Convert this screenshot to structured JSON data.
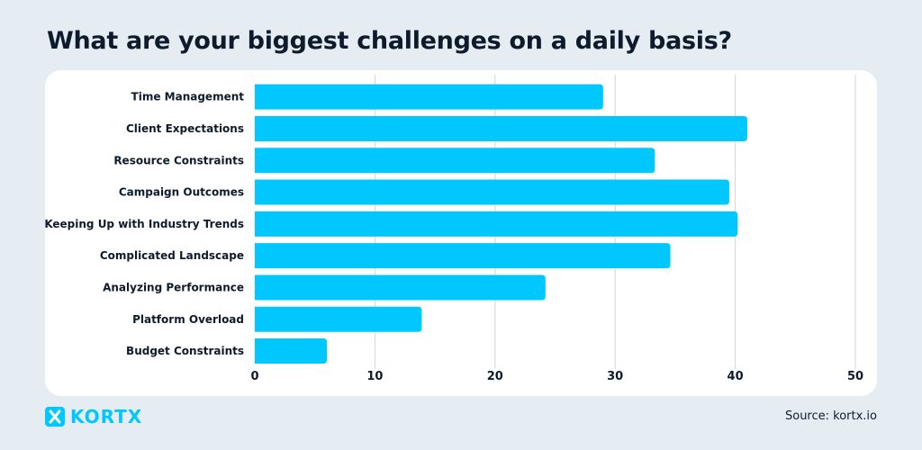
{
  "page": {
    "title": "What are your biggest challenges on a daily basis?",
    "source": "Source: kortx.io"
  },
  "brand": {
    "name": "KORTX",
    "color": "#00c8ff",
    "logo_icon": "kortx-x-logo-icon"
  },
  "colors": {
    "bar": "#00c8ff",
    "background": "#e5edf3",
    "card": "#ffffff",
    "grid": "#cfd6dc",
    "text": "#0e1b2c"
  },
  "chart_data": {
    "type": "bar",
    "orientation": "horizontal",
    "title": "What are your biggest challenges on a daily basis?",
    "categories": [
      "Time Management",
      "Client Expectations",
      "Resource Constraints",
      "Campaign Outcomes",
      "Keeping Up with Industry Trends",
      "Complicated Landscape",
      "Analyzing Performance",
      "Platform Overload",
      "Budget Constraints"
    ],
    "values": [
      29,
      41,
      33.3,
      39.5,
      40.2,
      34.6,
      24.2,
      13.9,
      6
    ],
    "xlim": [
      0,
      50
    ],
    "xticks": [
      0,
      10,
      20,
      30,
      40,
      50
    ],
    "xlabel": "",
    "ylabel": "",
    "grid": "vertical",
    "legend": "none"
  }
}
